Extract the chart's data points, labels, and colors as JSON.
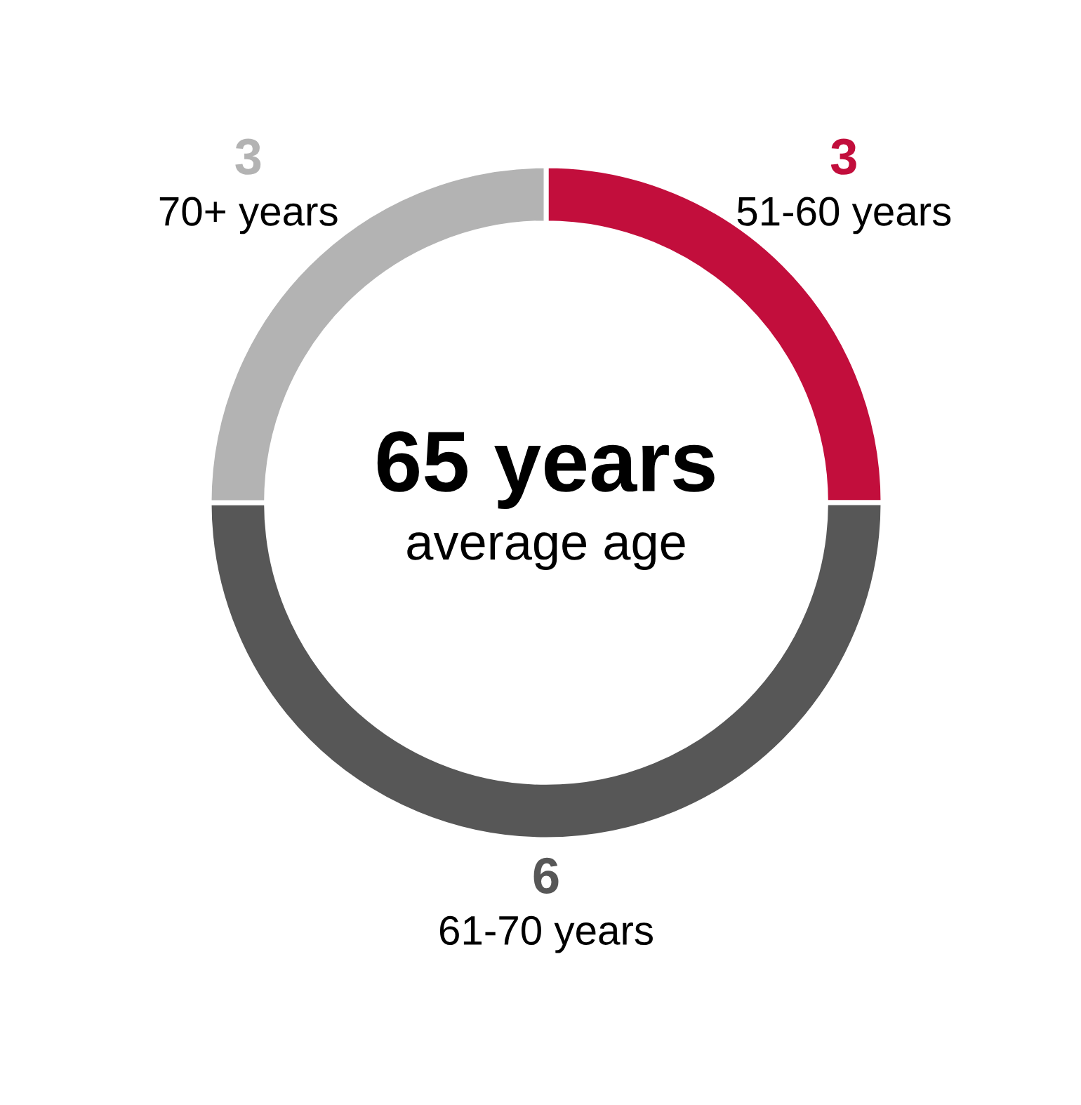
{
  "chart_data": {
    "type": "donut",
    "categories": [
      "51-60 years",
      "61-70 years",
      "70+ years"
    ],
    "values": [
      3,
      6,
      3
    ],
    "colors": [
      "#c20e3c",
      "#575757",
      "#b3b3b3"
    ],
    "data_labels": true,
    "annotations": [
      "65 years",
      "average age"
    ],
    "legend": false
  }
}
